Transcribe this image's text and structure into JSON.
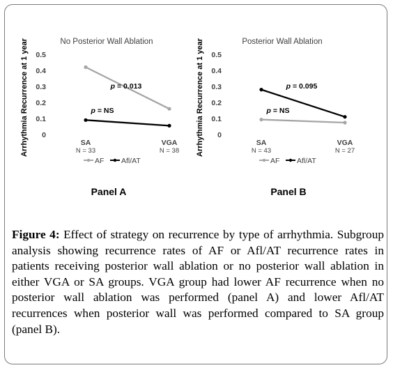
{
  "chart_data": [
    {
      "type": "line",
      "title": "No Posterior Wall Ablation",
      "ylabel": "Arrhythmia Recurrence at 1 year",
      "ylim": [
        0,
        0.5
      ],
      "yticks": [
        "0",
        "0.1",
        "0.2",
        "0.3",
        "0.4",
        "0.5"
      ],
      "categories": [
        "SA",
        "VGA"
      ],
      "category_sublabels": [
        "N = 33",
        "N = 38"
      ],
      "series": [
        {
          "name": "AF",
          "color": "#a6a6a6",
          "values": [
            0.42,
            0.16
          ]
        },
        {
          "name": "Afl/AT",
          "color": "#000000",
          "values": [
            0.09,
            0.055
          ]
        }
      ],
      "annotations": [
        {
          "label": "p = 0.013",
          "value": "0.013"
        },
        {
          "label": "p = NS",
          "value": "NS"
        }
      ],
      "legend_position": "bottom",
      "panel_label": "Panel A"
    },
    {
      "type": "line",
      "title": "Posterior Wall Ablation",
      "ylabel": "Arrhythmia Recurrence at 1 year",
      "ylim": [
        0,
        0.5
      ],
      "yticks": [
        "0",
        "0.1",
        "0.2",
        "0.3",
        "0.4",
        "0.5"
      ],
      "categories": [
        "SA",
        "VGA"
      ],
      "category_sublabels": [
        "N = 43",
        "N = 27"
      ],
      "series": [
        {
          "name": "AF",
          "color": "#a6a6a6",
          "values": [
            0.093,
            0.074
          ]
        },
        {
          "name": "Afl/AT",
          "color": "#000000",
          "values": [
            0.28,
            0.11
          ]
        }
      ],
      "annotations": [
        {
          "label": "p = 0.095",
          "value": "0.095"
        },
        {
          "label": "p = NS",
          "value": "NS"
        }
      ],
      "legend_position": "bottom",
      "panel_label": "Panel B"
    }
  ],
  "caption": {
    "figure_label": "Figure 4:",
    "text": "Effect of strategy on recurrence by type of arrhythmia. Subgroup analysis showing recurrence rates of AF or Afl/AT recurrence rates in patients receiving posterior wall ablation or no posterior wall ablation in either VGA or SA groups. VGA group had lower AF recurrence when no posterior wall ablation was performed (panel A) and lower Afl/AT recurrences when posterior wall was performed compared to SA group (panel B)."
  }
}
